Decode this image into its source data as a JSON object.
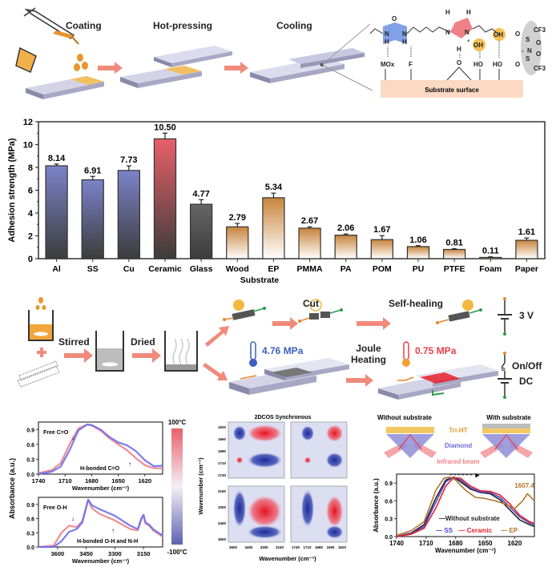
{
  "top_process": {
    "steps": [
      "Coating",
      "Hot-pressing",
      "Cooling"
    ],
    "molecule": {
      "atoms": [
        "O",
        "N",
        "H",
        "N",
        "H",
        "H",
        "H",
        "N",
        "N",
        "+",
        "H",
        "O",
        "OH",
        "OH",
        "O",
        "S",
        "O",
        "N",
        "-",
        "O",
        "S",
        "O",
        "CF3",
        "CF3"
      ],
      "surface_groups": [
        "MOx",
        "F",
        "HO",
        "HO"
      ],
      "surface_label": "Substrate surface"
    }
  },
  "chart_data": [
    {
      "type": "bar",
      "title": "",
      "xlabel": "Substrate",
      "ylabel": "Adhesion strength (MPa)",
      "ylim": [
        0,
        12
      ],
      "yticks": [
        0,
        2,
        4,
        6,
        8,
        10,
        12
      ],
      "categories": [
        "Al",
        "SS",
        "Cu",
        "Ceramic",
        "Glass",
        "Wood",
        "EP",
        "PMMA",
        "PA",
        "POM",
        "PU",
        "PTFE",
        "Foam",
        "Paper"
      ],
      "values": [
        8.14,
        6.91,
        7.73,
        10.5,
        4.77,
        2.79,
        5.34,
        2.67,
        2.06,
        1.67,
        1.06,
        0.81,
        0.11,
        1.61
      ],
      "value_labels": [
        "8.14",
        "6.91",
        "7.73",
        "10.50",
        "4.77",
        "2.79",
        "5.34",
        "2.67",
        "2.06",
        "1.67",
        "1.06",
        "0.81",
        "0.11",
        "1.61"
      ],
      "errors": [
        0.15,
        0.3,
        0.4,
        0.5,
        0.4,
        0.3,
        0.4,
        0.12,
        0.1,
        0.35,
        0.08,
        0.06,
        0.05,
        0.2
      ],
      "color_groups": [
        "metal",
        "metal",
        "metal",
        "ceramic",
        "glass",
        "polymer",
        "polymer",
        "polymer",
        "polymer",
        "polymer",
        "polymer",
        "polymer",
        "polymer",
        "polymer"
      ],
      "colors": {
        "metal": "#7b83c9",
        "ceramic": "#e8606a",
        "glass": "#666666",
        "polymer": "#c8843c",
        "base_dark": "#3c3c3c",
        "base_light": "#ffffff"
      }
    },
    {
      "type": "line",
      "title": "",
      "xlabel": "Wavenumber (cm⁻¹)",
      "ylabel": "Absorbance (a.u.)",
      "xlim": [
        1740,
        1600
      ],
      "ylim": [
        0,
        1.05
      ],
      "xticks": [
        1740,
        1710,
        1680,
        1650,
        1620
      ],
      "yticks": [
        0.0,
        0.3,
        0.6,
        0.9
      ],
      "annotations": [
        "Free C=O",
        "H-bonded C=O"
      ],
      "series": [
        {
          "name": "100°C",
          "x": [
            1740,
            1725,
            1715,
            1705,
            1695,
            1685,
            1680,
            1670,
            1660,
            1650,
            1640,
            1630,
            1620,
            1610,
            1600
          ],
          "y": [
            0.02,
            0.08,
            0.22,
            0.6,
            0.92,
            1.0,
            0.98,
            0.88,
            0.72,
            0.6,
            0.48,
            0.32,
            0.18,
            0.12,
            0.12
          ]
        },
        {
          "name": "-100°C",
          "x": [
            1740,
            1725,
            1715,
            1705,
            1695,
            1685,
            1680,
            1670,
            1660,
            1650,
            1640,
            1630,
            1620,
            1610,
            1600
          ],
          "y": [
            0.0,
            0.05,
            0.15,
            0.48,
            0.88,
            1.0,
            0.99,
            0.9,
            0.75,
            0.64,
            0.58,
            0.46,
            0.28,
            0.16,
            0.17
          ]
        }
      ]
    },
    {
      "type": "line",
      "title": "",
      "xlabel": "Wavenumber (cm⁻¹)",
      "ylabel": "Absorbance (a.u.)",
      "xlim": [
        3700,
        3050
      ],
      "ylim": [
        0,
        1.05
      ],
      "xticks": [
        3600,
        3450,
        3300,
        3150
      ],
      "yticks": [
        0.0,
        0.3,
        0.6,
        0.9
      ],
      "annotations": [
        "Free O-H",
        "H-bonded O-H and N-H"
      ],
      "series": [
        {
          "name": "100°C",
          "x": [
            3700,
            3620,
            3580,
            3540,
            3500,
            3470,
            3440,
            3420,
            3380,
            3300,
            3220,
            3180,
            3160,
            3150,
            3140,
            3120,
            3100,
            3050
          ],
          "y": [
            0.0,
            0.03,
            0.3,
            0.45,
            0.42,
            0.55,
            1.0,
            0.82,
            0.7,
            0.56,
            0.38,
            0.35,
            0.6,
            0.65,
            0.5,
            0.45,
            0.35,
            0.22
          ]
        },
        {
          "name": "-100°C",
          "x": [
            3700,
            3620,
            3580,
            3540,
            3500,
            3470,
            3440,
            3420,
            3380,
            3300,
            3220,
            3180,
            3160,
            3150,
            3140,
            3120,
            3100,
            3050
          ],
          "y": [
            0.0,
            0.0,
            0.12,
            0.32,
            0.38,
            0.52,
            1.0,
            0.88,
            0.8,
            0.66,
            0.45,
            0.38,
            0.62,
            0.68,
            0.52,
            0.47,
            0.38,
            0.24
          ]
        }
      ]
    },
    {
      "type": "heatmap",
      "title": "2DCOS Synchronous",
      "xlabel": "Wavenumber (cm⁻¹)",
      "ylabel": "Wavenumber (cm⁻¹)",
      "panels": [
        {
          "xticks": [
            3600,
            3450,
            3300,
            3150
          ],
          "yticks": [
            1620,
            1650,
            1680,
            1710,
            1740
          ]
        },
        {
          "xticks": [
            1740,
            1710,
            1680,
            1650,
            1620
          ],
          "yticks": [
            1620,
            1650,
            1680,
            1710,
            1740
          ]
        },
        {
          "xticks": [
            3600,
            3450,
            3300,
            3150
          ],
          "yticks": [
            3150,
            3300,
            3450,
            3600
          ]
        },
        {
          "xticks": [
            1740,
            1710,
            1680,
            1650,
            1620
          ],
          "yticks": [
            3150,
            3300,
            3450,
            3600
          ]
        }
      ]
    },
    {
      "type": "line",
      "title": "",
      "xlabel": "Wavenumber (cm⁻¹)",
      "ylabel": "Absorbance (a.u.)",
      "xlim": [
        1740,
        1600
      ],
      "ylim": [
        0,
        1.05
      ],
      "xticks": [
        1740,
        1710,
        1680,
        1650,
        1620
      ],
      "yticks": [
        0.0,
        0.3,
        0.6,
        0.9
      ],
      "annotations": [
        "1607.4"
      ],
      "legend": [
        "Without substrate",
        "SS",
        "Ceramic",
        "EP"
      ],
      "legend_position": "bottom-right",
      "series": [
        {
          "name": "Without substrate",
          "color": "#222222",
          "x": [
            1740,
            1725,
            1712,
            1700,
            1690,
            1682,
            1675,
            1665,
            1655,
            1645,
            1635,
            1625,
            1615,
            1605,
            1600
          ],
          "y": [
            0.0,
            0.06,
            0.2,
            0.65,
            0.95,
            1.0,
            0.92,
            0.8,
            0.74,
            0.72,
            0.62,
            0.45,
            0.28,
            0.2,
            0.17
          ]
        },
        {
          "name": "SS",
          "color": "#4a4ad0",
          "x": [
            1740,
            1725,
            1712,
            1700,
            1690,
            1682,
            1675,
            1665,
            1655,
            1645,
            1635,
            1625,
            1615,
            1605,
            1600
          ],
          "y": [
            0.0,
            0.05,
            0.17,
            0.58,
            0.92,
            1.0,
            0.95,
            0.82,
            0.75,
            0.74,
            0.66,
            0.5,
            0.33,
            0.23,
            0.2
          ]
        },
        {
          "name": "Ceramic",
          "color": "#e8202a",
          "x": [
            1740,
            1725,
            1712,
            1700,
            1690,
            1682,
            1675,
            1665,
            1655,
            1645,
            1635,
            1625,
            1615,
            1605,
            1600
          ],
          "y": [
            0.0,
            0.04,
            0.14,
            0.48,
            0.85,
            0.99,
            0.98,
            0.85,
            0.77,
            0.76,
            0.7,
            0.55,
            0.36,
            0.25,
            0.22
          ]
        },
        {
          "name": "EP",
          "color": "#b0722c",
          "x": [
            1740,
            1725,
            1712,
            1700,
            1692,
            1686,
            1680,
            1670,
            1660,
            1650,
            1640,
            1630,
            1620,
            1612,
            1607,
            1600
          ],
          "y": [
            0.02,
            0.1,
            0.25,
            0.78,
            0.98,
            1.0,
            0.95,
            0.78,
            0.66,
            0.64,
            0.6,
            0.55,
            0.47,
            0.6,
            0.72,
            0.6
          ]
        }
      ]
    }
  ],
  "colorbar": {
    "max_label": "100°C",
    "min_label": "-100°C",
    "max_color": "#e8606a",
    "mid_color": "#f4f0f6",
    "min_color": "#5d63b0"
  },
  "middle_process": {
    "steps": [
      "Stirred",
      "Dried"
    ],
    "branch_top": {
      "labels": [
        "Cut",
        "Self-healing"
      ],
      "voltage": "3 V"
    },
    "branch_bottom": {
      "strength_before": "4.76 MPa",
      "step": "Joule Heating",
      "strength_after": "0.75 MPa",
      "switch": "On/Off",
      "source": "DC"
    }
  },
  "atr_diagram": {
    "left_title": "Without substrate",
    "right_title": "With substrate",
    "layer_label": "Tri-HT",
    "crystal_label": "Diamond",
    "beam_label": "Infrared beam"
  },
  "colors": {
    "arrow": "#f08a7a",
    "orange": "#e8962e",
    "blue_text": "#3b5fc0",
    "red_text": "#e8404a",
    "surface": "#fbd9c4"
  }
}
